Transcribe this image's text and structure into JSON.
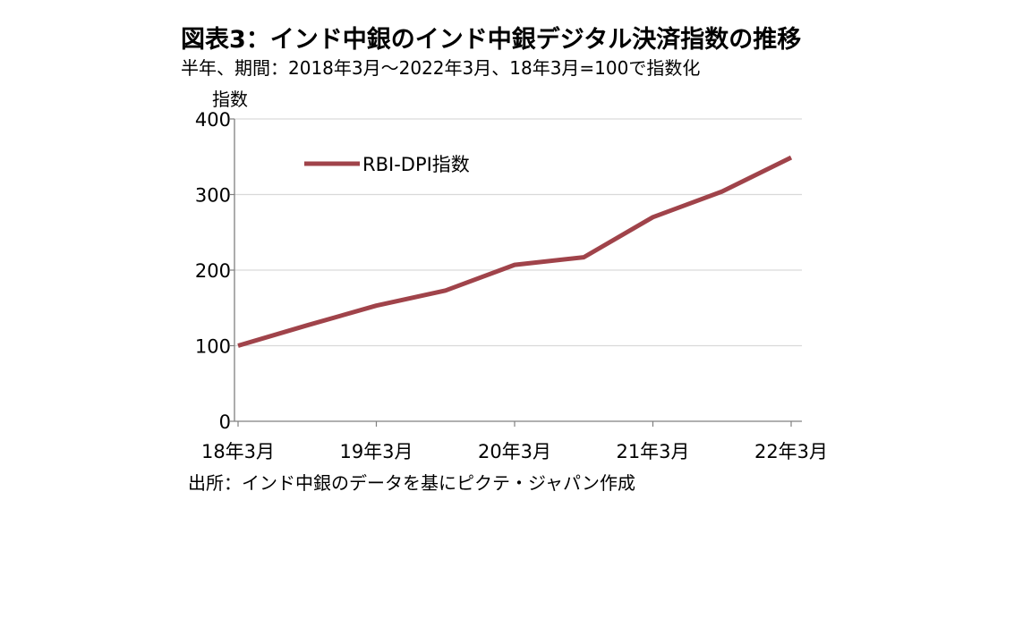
{
  "title": "図表3：インド中銀のインド中銀デジタル決済指数の推移",
  "subtitle": "半年、期間：2018年3月～2022年3月、18年3月=100で指数化",
  "source": "出所：インド中銀のデータを基にピクテ・ジャパン作成",
  "colors": {
    "series": "#a0434a",
    "gridline": "#d9d9d9",
    "axis": "#808080"
  },
  "chart_data": {
    "type": "line",
    "title": "図表3：インド中銀のインド中銀デジタル決済指数の推移",
    "subtitle": "半年、期間：2018年3月～2022年3月、18年3月=100で指数化",
    "ylabel": "指数",
    "xlabel": "",
    "x": [
      "2018-03",
      "2018-09",
      "2019-03",
      "2019-09",
      "2020-03",
      "2020-09",
      "2021-03",
      "2021-09",
      "2022-03"
    ],
    "x_tick_labels": [
      "18年3月",
      "19年3月",
      "20年3月",
      "21年3月",
      "22年3月"
    ],
    "x_tick_indices": [
      0,
      2,
      4,
      6,
      8
    ],
    "y_ticks": [
      0,
      100,
      200,
      300,
      400
    ],
    "y_tick_labels": [
      "0",
      "100",
      "200",
      "300",
      "400"
    ],
    "ylim": [
      0,
      400
    ],
    "grid": true,
    "legend": "top-left, inside plot",
    "series": [
      {
        "name": "RBI-DPI指数",
        "values": [
          100,
          127,
          153,
          173,
          207,
          217,
          270,
          304,
          349
        ]
      }
    ]
  }
}
